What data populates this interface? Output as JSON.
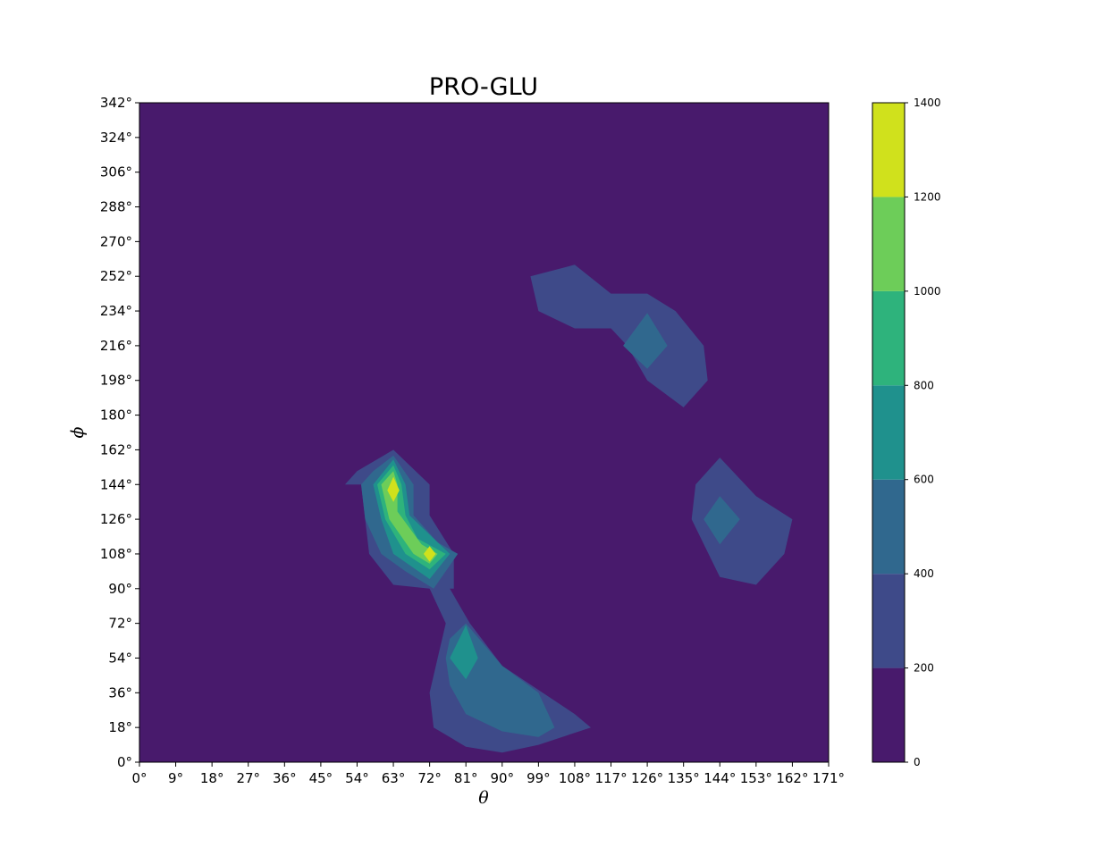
{
  "chart_data": {
    "type": "contour",
    "title": "PRO-GLU",
    "xlabel": "θ",
    "ylabel": "ϕ",
    "xlim": [
      0,
      171
    ],
    "ylim": [
      0,
      342
    ],
    "x_ticks": [
      "0°",
      "9°",
      "18°",
      "27°",
      "36°",
      "45°",
      "54°",
      "63°",
      "72°",
      "81°",
      "90°",
      "99°",
      "108°",
      "117°",
      "126°",
      "135°",
      "144°",
      "153°",
      "162°",
      "171°"
    ],
    "y_ticks": [
      "0°",
      "18°",
      "36°",
      "54°",
      "72°",
      "90°",
      "108°",
      "126°",
      "144°",
      "162°",
      "180°",
      "198°",
      "216°",
      "234°",
      "252°",
      "270°",
      "288°",
      "306°",
      "324°",
      "342°"
    ],
    "colorbar": {
      "levels": [
        0,
        200,
        400,
        600,
        800,
        1000,
        1200,
        1400
      ],
      "tick_labels": [
        "0",
        "200",
        "400",
        "600",
        "800",
        "1000",
        "1200",
        "1400"
      ],
      "colors": [
        "#481a6c",
        "#3e4a89",
        "#30688e",
        "#1f918d",
        "#2eb37c",
        "#6dcd59",
        "#d0e11c"
      ]
    },
    "regions": [
      {
        "name": "upper-right basin",
        "level": 1,
        "points": [
          [
            97,
            252
          ],
          [
            108,
            258
          ],
          [
            117,
            243
          ],
          [
            126,
            243
          ],
          [
            133,
            234
          ],
          [
            140,
            216
          ],
          [
            141,
            198
          ],
          [
            135,
            184
          ],
          [
            126,
            198
          ],
          [
            121,
            216
          ],
          [
            117,
            225
          ],
          [
            108,
            225
          ],
          [
            99,
            234
          ]
        ]
      },
      {
        "name": "upper-right basin",
        "level": 2,
        "points": [
          [
            126,
            233
          ],
          [
            131,
            216
          ],
          [
            126,
            204
          ],
          [
            120,
            216
          ]
        ]
      },
      {
        "name": "right basin",
        "level": 1,
        "points": [
          [
            144,
            158
          ],
          [
            153,
            138
          ],
          [
            162,
            126
          ],
          [
            160,
            108
          ],
          [
            153,
            92
          ],
          [
            144,
            96
          ],
          [
            137,
            126
          ],
          [
            138,
            144
          ]
        ]
      },
      {
        "name": "right basin",
        "level": 2,
        "points": [
          [
            144,
            138
          ],
          [
            149,
            126
          ],
          [
            144,
            113
          ],
          [
            140,
            126
          ]
        ]
      },
      {
        "name": "central basin",
        "level": 1,
        "points": [
          [
            63,
            162
          ],
          [
            72,
            144
          ],
          [
            72,
            128
          ],
          [
            78,
            108
          ],
          [
            78,
            90
          ],
          [
            77,
            90
          ],
          [
            82,
            72
          ],
          [
            90,
            50
          ],
          [
            108,
            25
          ],
          [
            112,
            18
          ],
          [
            99,
            9
          ],
          [
            90,
            5
          ],
          [
            81,
            8
          ],
          [
            73,
            18
          ],
          [
            72,
            36
          ],
          [
            74,
            54
          ],
          [
            76,
            72
          ],
          [
            72,
            90
          ],
          [
            63,
            92
          ],
          [
            57,
            108
          ],
          [
            56,
            126
          ],
          [
            55,
            144
          ],
          [
            51,
            144
          ],
          [
            54,
            151
          ]
        ]
      },
      {
        "name": "central basin",
        "level": 2,
        "points": [
          [
            63,
            159
          ],
          [
            68,
            144
          ],
          [
            68,
            128
          ],
          [
            74,
            114
          ],
          [
            79,
            108
          ],
          [
            73,
            90
          ],
          [
            66,
            99
          ],
          [
            60,
            108
          ],
          [
            56,
            126
          ],
          [
            55,
            144
          ],
          [
            58,
            151
          ]
        ]
      },
      {
        "name": "lower basin",
        "level": 2,
        "points": [
          [
            81,
            72
          ],
          [
            90,
            50
          ],
          [
            99,
            36
          ],
          [
            103,
            18
          ],
          [
            99,
            13
          ],
          [
            90,
            16
          ],
          [
            81,
            25
          ],
          [
            77,
            40
          ],
          [
            76,
            54
          ],
          [
            77,
            64
          ]
        ]
      },
      {
        "name": "central basin",
        "level": 3,
        "points": [
          [
            63,
            157
          ],
          [
            66,
            144
          ],
          [
            67,
            128
          ],
          [
            72,
            118
          ],
          [
            77,
            108
          ],
          [
            72,
            95
          ],
          [
            63,
            108
          ],
          [
            60,
            126
          ],
          [
            58,
            144
          ]
        ]
      },
      {
        "name": "lower basin",
        "level": 3,
        "points": [
          [
            81,
            71
          ],
          [
            84,
            54
          ],
          [
            81,
            43
          ],
          [
            77,
            54
          ]
        ]
      },
      {
        "name": "central basin",
        "level": 4,
        "points": [
          [
            63,
            154
          ],
          [
            65,
            144
          ],
          [
            66,
            128
          ],
          [
            69,
            116
          ],
          [
            76,
            108
          ],
          [
            72,
            100
          ],
          [
            66,
            108
          ],
          [
            61,
            126
          ],
          [
            59,
            144
          ]
        ]
      },
      {
        "name": "central basin",
        "level": 5,
        "points": [
          [
            63,
            151
          ],
          [
            64,
            144
          ],
          [
            64,
            130
          ],
          [
            70,
            113
          ],
          [
            74,
            108
          ],
          [
            72,
            103
          ],
          [
            68,
            108
          ],
          [
            62,
            126
          ],
          [
            60,
            144
          ]
        ]
      },
      {
        "name": "central basin",
        "level": 6,
        "points": [
          [
            63,
            148
          ],
          [
            64.5,
            141
          ],
          [
            63,
            135
          ],
          [
            61.5,
            141
          ]
        ]
      },
      {
        "name": "central basin",
        "level": 6,
        "points": [
          [
            72,
            112
          ],
          [
            73.5,
            108
          ],
          [
            72,
            104
          ],
          [
            70.5,
            108
          ]
        ]
      }
    ]
  }
}
